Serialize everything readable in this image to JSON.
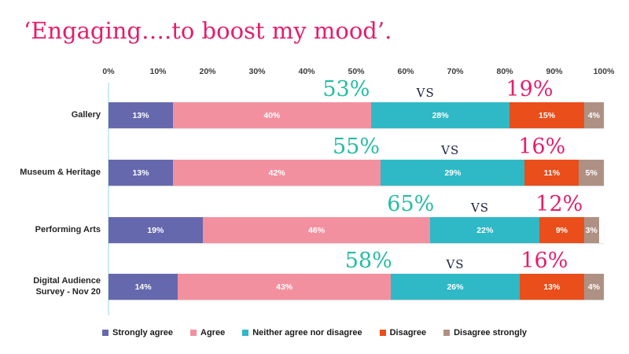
{
  "title": "‘Engaging….to boost my mood’.",
  "colors": {
    "title": "#e41e6b",
    "annotation_green": "#25bca2",
    "annotation_vs": "#1b2140",
    "annotation_pink": "#e41e6b",
    "axis_line": "#c9ecf6",
    "tick_text": "#3c3c3c",
    "category_text": "#262626",
    "bar_value_text": "#ffffff"
  },
  "chart_data": {
    "type": "bar",
    "orientation": "horizontal",
    "stacked": true,
    "title": "‘Engaging….to boost my mood’.",
    "xlabel": "",
    "ylabel": "",
    "x_axis": {
      "position": "top",
      "range": [
        0,
        100
      ],
      "ticks": [
        "0%",
        "10%",
        "20%",
        "30%",
        "40%",
        "50%",
        "60%",
        "70%",
        "80%",
        "90%",
        "100%"
      ]
    },
    "grid": false,
    "categories": [
      "Gallery",
      "Museum & Heritage",
      "Performing Arts",
      "Digital Audience Survey - Nov 20"
    ],
    "series": [
      {
        "name": "Strongly agree",
        "color": "#6668ae",
        "values": [
          13,
          13,
          19,
          14
        ]
      },
      {
        "name": "Agree",
        "color": "#f390a0",
        "values": [
          40,
          42,
          46,
          43
        ]
      },
      {
        "name": "Neither agree nor disagree",
        "color": "#2fb9c6",
        "values": [
          28,
          29,
          22,
          26
        ]
      },
      {
        "name": "Disagree",
        "color": "#e94e1b",
        "values": [
          15,
          11,
          9,
          13
        ]
      },
      {
        "name": "Disagree strongly",
        "color": "#ae9183",
        "values": [
          4,
          5,
          3,
          4
        ]
      }
    ],
    "annotations": [
      {
        "agree_total": "53%",
        "vs": "vs",
        "disagree_total": "19%",
        "x_green": 48,
        "x_vs": 64,
        "x_pink": 85
      },
      {
        "agree_total": "55%",
        "vs": "vs",
        "disagree_total": "16%",
        "x_green": 50,
        "x_vs": 69,
        "x_pink": 87.5
      },
      {
        "agree_total": "65%",
        "vs": "vs",
        "disagree_total": "12%",
        "x_green": 61,
        "x_vs": 75,
        "x_pink": 91
      },
      {
        "agree_total": "58%",
        "vs": "vs",
        "disagree_total": "16%",
        "x_green": 52.5,
        "x_vs": 70,
        "x_pink": 88
      }
    ],
    "legend": {
      "position": "bottom",
      "items": [
        "Strongly agree",
        "Agree",
        "Neither agree nor disagree",
        "Disagree",
        "Disagree strongly"
      ]
    }
  }
}
